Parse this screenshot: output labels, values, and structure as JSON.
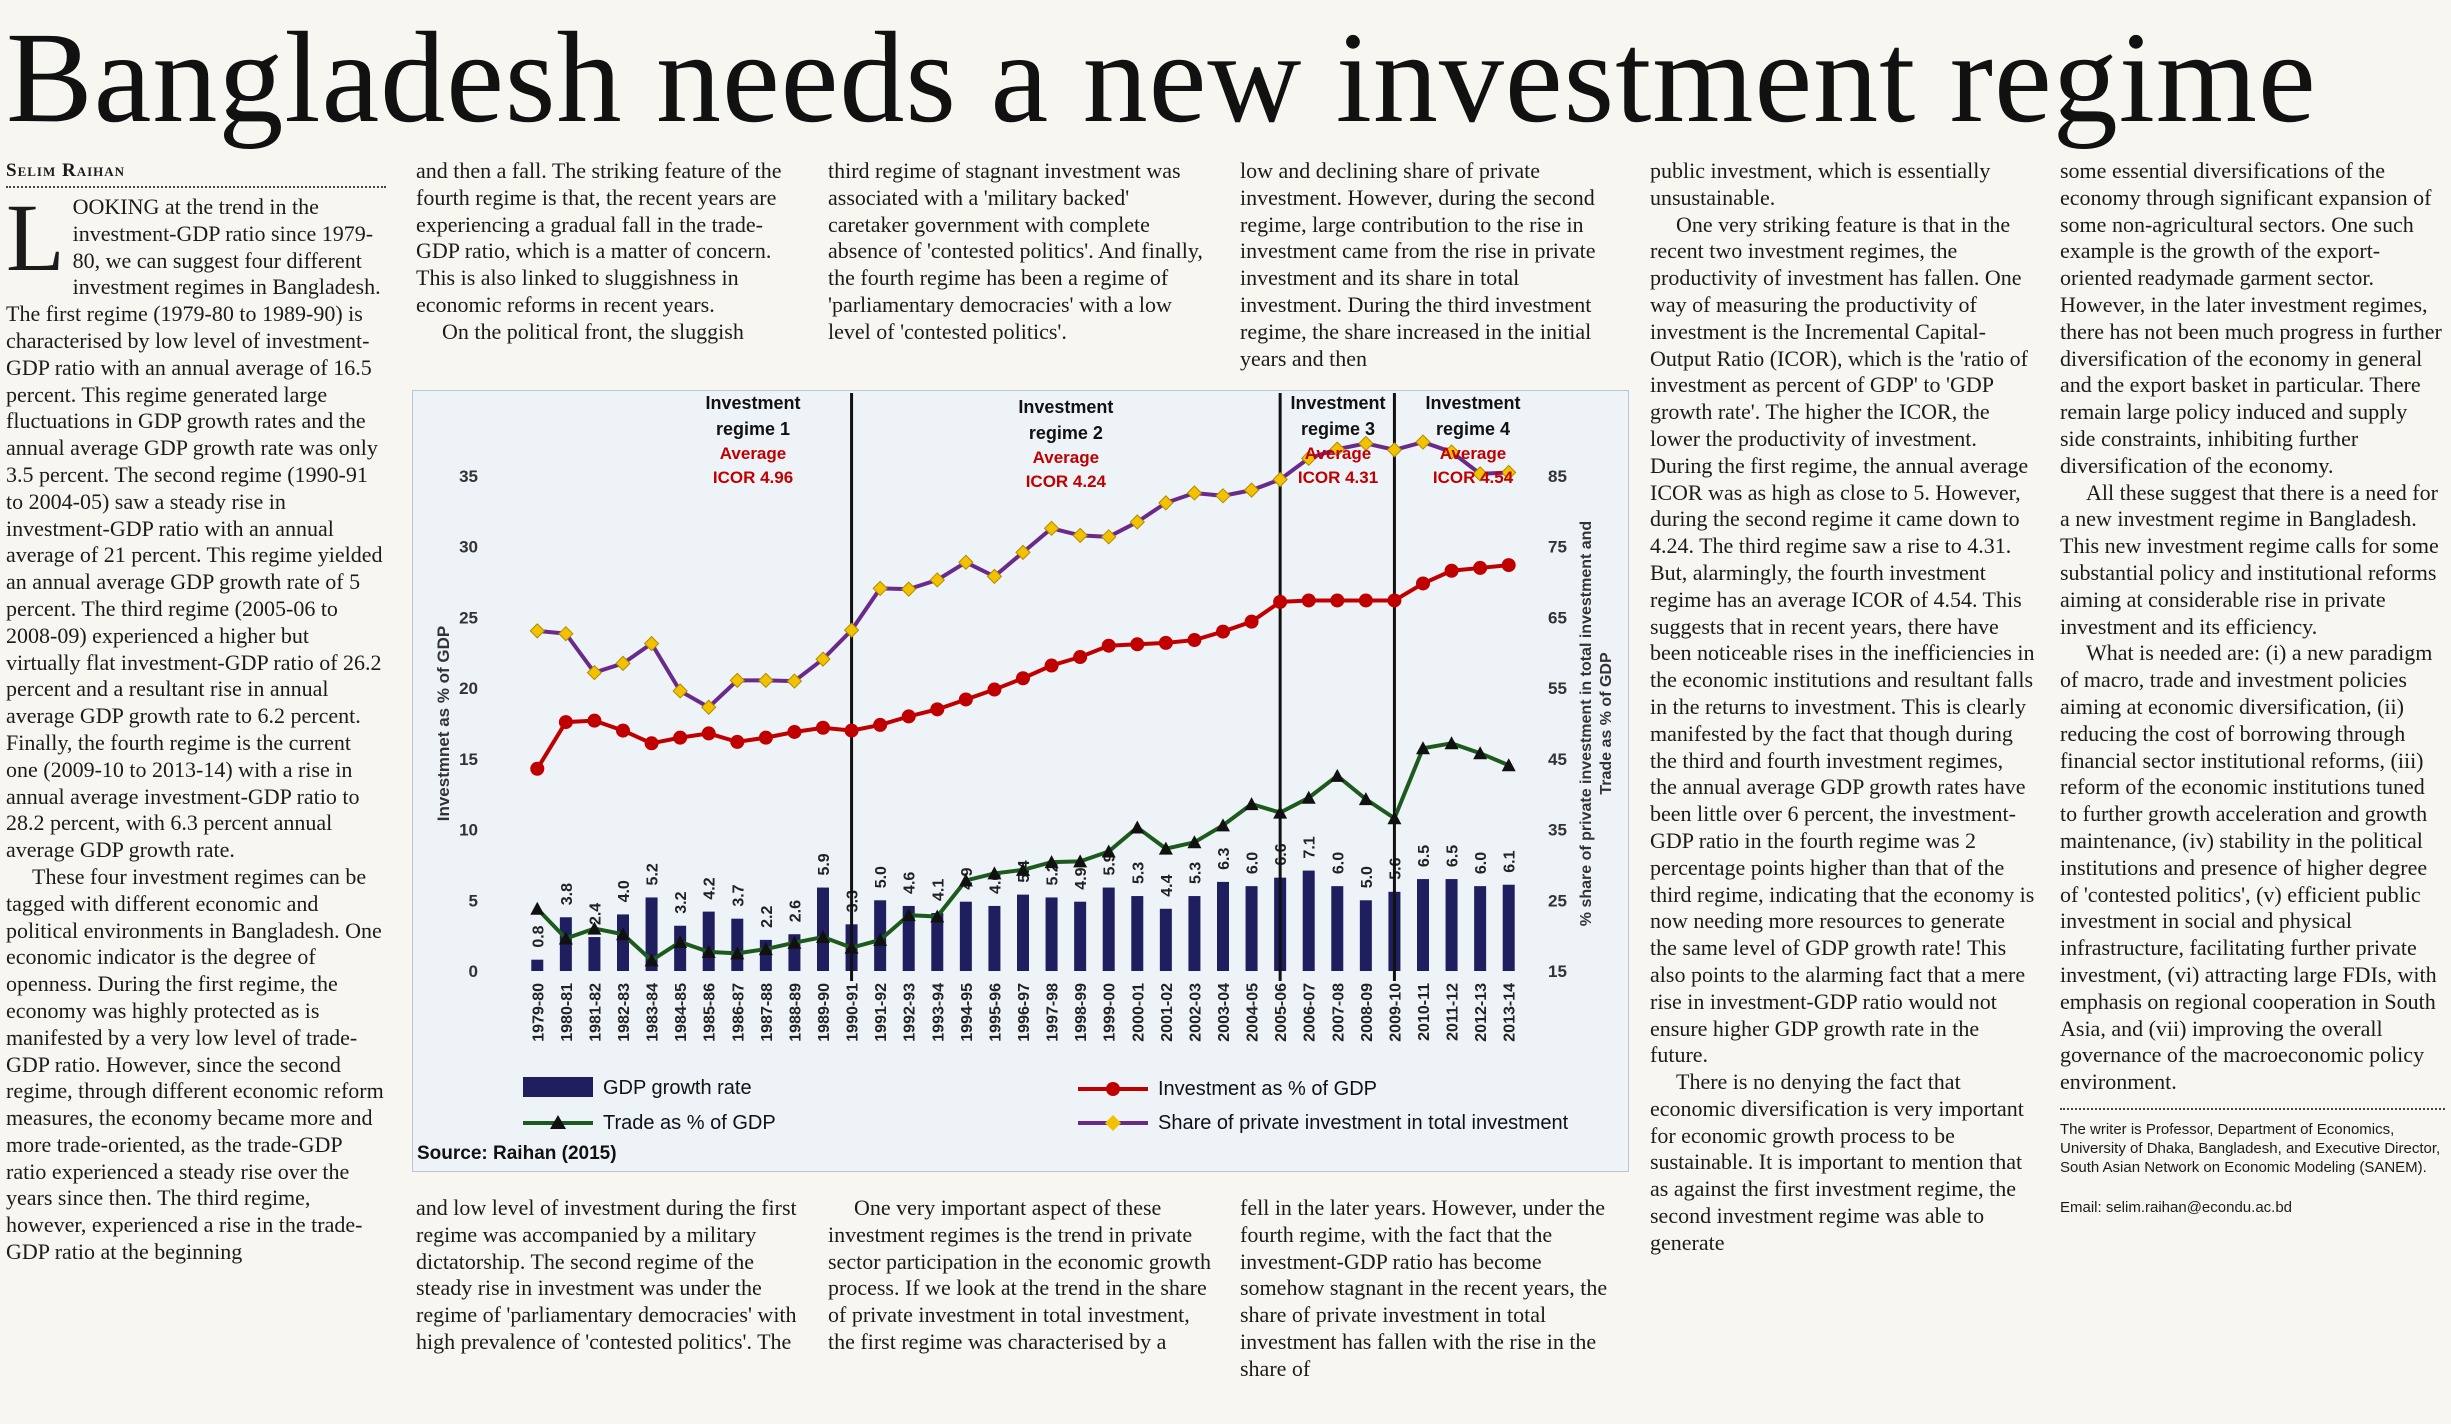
{
  "headline": "Bangladesh needs a new investment regime",
  "byline": "Selim Raihan",
  "col1": {
    "dropcap": "L",
    "p1_rest": "OOKING at the trend in the investment-GDP ratio since 1979-80, we can suggest four different investment regimes in Bangladesh. The first regime (1979-80 to 1989-90) is characterised by low level of investment-GDP ratio with an annual average of 16.5 percent. This regime generated large fluctuations in GDP growth rates and the annual average GDP growth rate was only 3.5 percent. The second regime (1990-91 to 2004-05) saw a steady rise in investment-GDP ratio with an annual average of 21 percent. This regime yielded an annual average GDP growth rate of 5 percent. The third regime (2005-06 to 2008-09) experienced a higher but virtually flat investment-GDP ratio of 26.2 percent and a resultant rise in annual average GDP growth rate to 6.2 percent. Finally, the fourth regime is the current one (2009-10 to 2013-14) with a rise in annual average investment-GDP ratio to 28.2 percent, with 6.3 percent annual average GDP growth rate.",
    "p2": "These four investment regimes can be tagged with different economic and political environments in Bangladesh. One economic indicator is the degree of openness. During the first regime, the economy was highly protected as is manifested by a very low level of trade-GDP ratio. However, since the second regime, through different economic reform measures, the economy became more and more trade-oriented, as the trade-GDP ratio experienced a steady rise over the years since then. The third regime, however, experienced a rise in the trade-GDP ratio at the beginning"
  },
  "col2_top": {
    "p1": "and then a fall. The striking feature of the fourth regime is that, the recent years are experiencing a gradual fall in the trade-GDP ratio, which is a matter of concern. This is also linked to sluggishness in economic reforms in recent years.",
    "p2": "On the political front, the sluggish"
  },
  "col3_top": {
    "p1": "third regime of stagnant investment was associated with a 'military backed' caretaker government with complete absence of 'contested politics'. And finally, the fourth regime has been a regime of 'parliamentary democracies' with a low level of 'contested politics'."
  },
  "col4_top": {
    "p1": "low and declining share of private investment. However, during the second regime, large contribution to the rise in investment came from the rise in private investment and its share in total investment. During the third investment regime, the share increased in the initial years and then"
  },
  "col2_bottom": {
    "p1": "and low level of investment during the first regime was accompanied by a military dictatorship. The second regime of the steady rise in investment was under the regime of 'parliamentary democracies' with high prevalence of 'contested politics'. The"
  },
  "col3_bottom": {
    "p1": "One very important aspect of these investment regimes is the trend in private sector participation in the economic growth process. If we look at the trend in the share of private investment in total investment, the first regime was characterised by a"
  },
  "col4_bottom": {
    "p1": "fell in the later years. However, under the fourth regime, with the fact that the investment-GDP ratio has become somehow stagnant in the recent years, the share of private investment in total investment has fallen with the rise in the share of"
  },
  "col5": {
    "p1": "public investment, which is essentially unsustainable.",
    "p2": "One very striking feature is that in the recent two investment regimes, the productivity of investment has fallen. One way of measuring the productivity of investment is the Incremental Capital-Output Ratio (ICOR), which is the 'ratio of investment as percent of GDP' to 'GDP growth rate'. The higher the ICOR, the lower the productivity of investment. During the first regime, the annual average ICOR was as high as close to 5. However, during the second regime it came down to 4.24. The third regime saw a rise to 4.31. But, alarmingly, the fourth investment regime has an average ICOR of 4.54. This suggests that in recent years, there have been noticeable rises in the inefficiencies in the economic institutions and resultant falls in the returns to investment. This is clearly manifested by the fact that though during the third and fourth investment regimes, the annual average GDP growth rates have been little over 6 percent, the investment-GDP ratio in the fourth regime was 2 percentage points higher than that of the third regime, indicating that the economy is now needing more resources to generate the same level of GDP growth rate! This also points to the alarming fact that a mere rise in investment-GDP ratio would not ensure higher GDP growth rate in the future.",
    "p3": "There is no denying the fact that economic diversification is very important for economic growth process to be sustainable. It is important to mention that as against the first investment regime, the second investment regime was able to generate"
  },
  "col6": {
    "p1": "some essential diversifications of the economy through significant expansion of some non-agricultural sectors. One such example is the growth of the export-oriented readymade garment sector. However, in the later investment regimes, there has not been much progress in further diversification of the economy in general and the export basket in particular. There remain large policy induced and supply side constraints, inhibiting further diversification of the economy.",
    "p2": "All these suggest that there is a need for a new investment regime in Bangladesh. This new investment regime calls for some substantial policy and institutional reforms aiming at considerable rise in private investment and its efficiency.",
    "p3": "What is needed are: (i) a new paradigm of macro, trade and investment policies aiming at economic diversification, (ii) reducing the cost of borrowing through financial sector institutional reforms, (iii) reform of the economic institutions tuned to further growth acceleration and growth maintenance, (iv) stability in the political institutions and presence of higher degree of 'contested politics', (v) efficient public investment in social and physical infrastructure, facilitating further private investment, (vi) attracting large FDIs, with emphasis on regional cooperation in South Asia, and (vii) improving the overall governance of the macroeconomic policy environment.",
    "writer": "The writer is Professor, Department of Economics, University of Dhaka, Bangladesh, and Executive Director, South Asian Network on Economic Modeling (SANEM).",
    "email": "Email: selim.raihan@econdu.ac.bd"
  },
  "colors": {
    "bar": "#1f1f5f",
    "investment": "#c00000",
    "trade": "#1d5a1d",
    "private": "#6a2a8a",
    "private_marker": "#f2c200",
    "icor": "#c00000"
  },
  "chart_data": {
    "type": "bar+line",
    "source": "Source: Raihan (2015)",
    "categories": [
      "1979-80",
      "1980-81",
      "1981-82",
      "1982-83",
      "1983-84",
      "1984-85",
      "1985-86",
      "1986-87",
      "1987-88",
      "1988-89",
      "1989-90",
      "1990-91",
      "1991-92",
      "1992-93",
      "1993-94",
      "1994-95",
      "1995-96",
      "1996-97",
      "1997-98",
      "1998-99",
      "1999-00",
      "2000-01",
      "2001-02",
      "2002-03",
      "2003-04",
      "2004-05",
      "2005-06",
      "2006-07",
      "2007-08",
      "2008-09",
      "2009-10",
      "2010-11",
      "2011-12",
      "2012-13",
      "2013-14"
    ],
    "gdp_growth": [
      0.8,
      3.8,
      2.4,
      4.0,
      5.2,
      3.2,
      4.2,
      3.7,
      2.2,
      2.6,
      5.9,
      3.3,
      5.0,
      4.6,
      4.1,
      4.9,
      4.6,
      5.4,
      5.2,
      4.9,
      5.9,
      5.3,
      4.4,
      5.3,
      6.3,
      6.0,
      6.6,
      7.1,
      6.0,
      5.0,
      5.6,
      6.5,
      6.5,
      6.0,
      6.1
    ],
    "gdp_growth_labels": [
      "0.8",
      "3.8",
      "2.4",
      "4.0",
      "5.2",
      "3.2",
      "4.2",
      "3.7",
      "2.2",
      "2.6",
      "5.9",
      "3.3",
      "5.0",
      "4.6",
      "4.1",
      "4.9",
      "4.6",
      "5.4",
      "5.2",
      "4.9",
      "5.9",
      "5.3",
      "4.4",
      "5.3",
      "6.3",
      "6.0",
      "6.6",
      "7.1",
      "6.0",
      "5.0",
      "5.6",
      "6.5",
      "6.5",
      "6.0",
      "6.1"
    ],
    "investment_pct_gdp": [
      14.3,
      17.6,
      17.7,
      17.0,
      16.1,
      16.5,
      16.8,
      16.2,
      16.5,
      16.9,
      17.2,
      17.0,
      17.4,
      18.0,
      18.5,
      19.2,
      19.9,
      20.7,
      21.6,
      22.2,
      23.0,
      23.1,
      23.2,
      23.4,
      24.0,
      24.7,
      26.1,
      26.2,
      26.2,
      26.2,
      26.2,
      27.4,
      28.3,
      28.5,
      28.7
    ],
    "trade_pct_gdp": [
      23.8,
      19.6,
      21.0,
      20.2,
      16.5,
      19.1,
      17.7,
      17.5,
      18.1,
      19.0,
      19.8,
      18.3,
      19.4,
      22.9,
      22.7,
      27.8,
      28.8,
      29.3,
      30.4,
      30.5,
      31.9,
      35.3,
      32.3,
      33.2,
      35.6,
      38.6,
      37.4,
      39.5,
      42.6,
      39.3,
      36.6,
      46.5,
      47.2,
      45.8,
      44.1
    ],
    "private_share": [
      63.1,
      62.7,
      57.2,
      58.5,
      61.3,
      54.6,
      52.3,
      56.1,
      56.1,
      56.0,
      59.1,
      63.2,
      69.1,
      69.0,
      70.3,
      72.8,
      70.8,
      74.2,
      77.6,
      76.6,
      76.4,
      78.5,
      81.2,
      82.6,
      82.2,
      83.0,
      84.5,
      87.5,
      88.8,
      89.6,
      88.7,
      89.8,
      88.4,
      85.3,
      85.5
    ],
    "left_axis": {
      "label": "Investmnet as % of GDP",
      "min": 0,
      "max": 35,
      "ticks": [
        "0",
        "5",
        "10",
        "15",
        "20",
        "25",
        "30",
        "35"
      ]
    },
    "right_axis": {
      "label_line1": "% share of private investment in total investment and",
      "label_line2": "Trade as % of GDP",
      "min": 15,
      "max": 85,
      "ticks": [
        "15",
        "25",
        "35",
        "45",
        "55",
        "65",
        "75",
        "85"
      ]
    },
    "regimes": [
      {
        "name_line1": "Investment",
        "name_line2": "regime 1",
        "avg": "Average",
        "icor": "ICOR 4.96",
        "start": "1979-80",
        "end": "1990-91"
      },
      {
        "name_line1": "Investment",
        "name_line2": "regime 2",
        "avg": "Average",
        "icor": "ICOR 4.24",
        "start": "1990-91",
        "end": "2005-06"
      },
      {
        "name_line1": "Investment",
        "name_line2": "regime 3",
        "avg": "Average",
        "icor": "ICOR 4.31",
        "start": "2005-06",
        "end": "2009-10"
      },
      {
        "name_line1": "Investment",
        "name_line2": "regime 4",
        "avg": "Average",
        "icor": "ICOR 4.54",
        "start": "2009-10",
        "end": "2013-14"
      }
    ],
    "regime_dividers_after": [
      "1990-91",
      "2005-06",
      "2009-10"
    ],
    "legend": [
      {
        "key": "gdp",
        "label": "GDP growth rate"
      },
      {
        "key": "investment",
        "label": "Investment as % of GDP"
      },
      {
        "key": "trade",
        "label": "Trade as % of GDP"
      },
      {
        "key": "private",
        "label": "Share of private investment in total investment"
      }
    ]
  }
}
